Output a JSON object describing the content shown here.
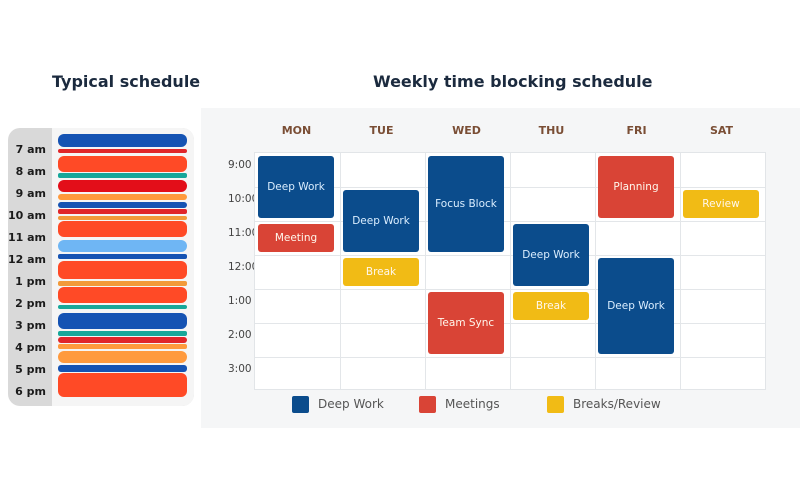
{
  "left_title": "Typical schedule",
  "right_title": "Weekly time blocking schedule",
  "typical": {
    "times": [
      "7 am",
      "8 am",
      "9 am",
      "10 am",
      "11 am",
      "12 am",
      "1 pm",
      "2 pm",
      "3 pm",
      "4 pm",
      "5 pm",
      "6 pm"
    ]
  },
  "weekly": {
    "days": [
      "MON",
      "TUE",
      "WED",
      "THU",
      "FRI",
      "SAT"
    ],
    "hours": [
      "9:00",
      "10:00",
      "11:00",
      "12:00",
      "1:00",
      "2:00",
      "3:00"
    ],
    "colors": {
      "deep": "#0b4c8c",
      "meeting": "#d94436",
      "break": "#f1bb15"
    },
    "blocks": [
      {
        "label": "Deep Work",
        "type": "deep",
        "day": 0,
        "start": 0,
        "span": 2
      },
      {
        "label": "Meeting",
        "type": "meeting",
        "day": 0,
        "start": 2,
        "span": 1
      },
      {
        "label": "Deep Work",
        "type": "deep",
        "day": 1,
        "start": 1,
        "span": 2
      },
      {
        "label": "Break",
        "type": "break",
        "day": 1,
        "start": 3,
        "span": 1
      },
      {
        "label": "Focus Block",
        "type": "deep",
        "day": 2,
        "start": 0,
        "span": 3
      },
      {
        "label": "Team Sync",
        "type": "meeting",
        "day": 2,
        "start": 4,
        "span": 2
      },
      {
        "label": "Deep Work",
        "type": "deep",
        "day": 3,
        "start": 2,
        "span": 2
      },
      {
        "label": "Break",
        "type": "break",
        "day": 3,
        "start": 4,
        "span": 1
      },
      {
        "label": "Planning",
        "type": "meeting",
        "day": 4,
        "start": 0,
        "span": 2
      },
      {
        "label": "Deep Work",
        "type": "deep",
        "day": 4,
        "start": 3,
        "span": 3
      },
      {
        "label": "Review",
        "type": "break",
        "day": 5,
        "start": 1,
        "span": 1
      }
    ],
    "legend": [
      {
        "label": "Deep Work",
        "type": "deep"
      },
      {
        "label": "Meetings",
        "type": "meeting"
      },
      {
        "label": "Breaks/Review",
        "type": "break"
      }
    ]
  }
}
